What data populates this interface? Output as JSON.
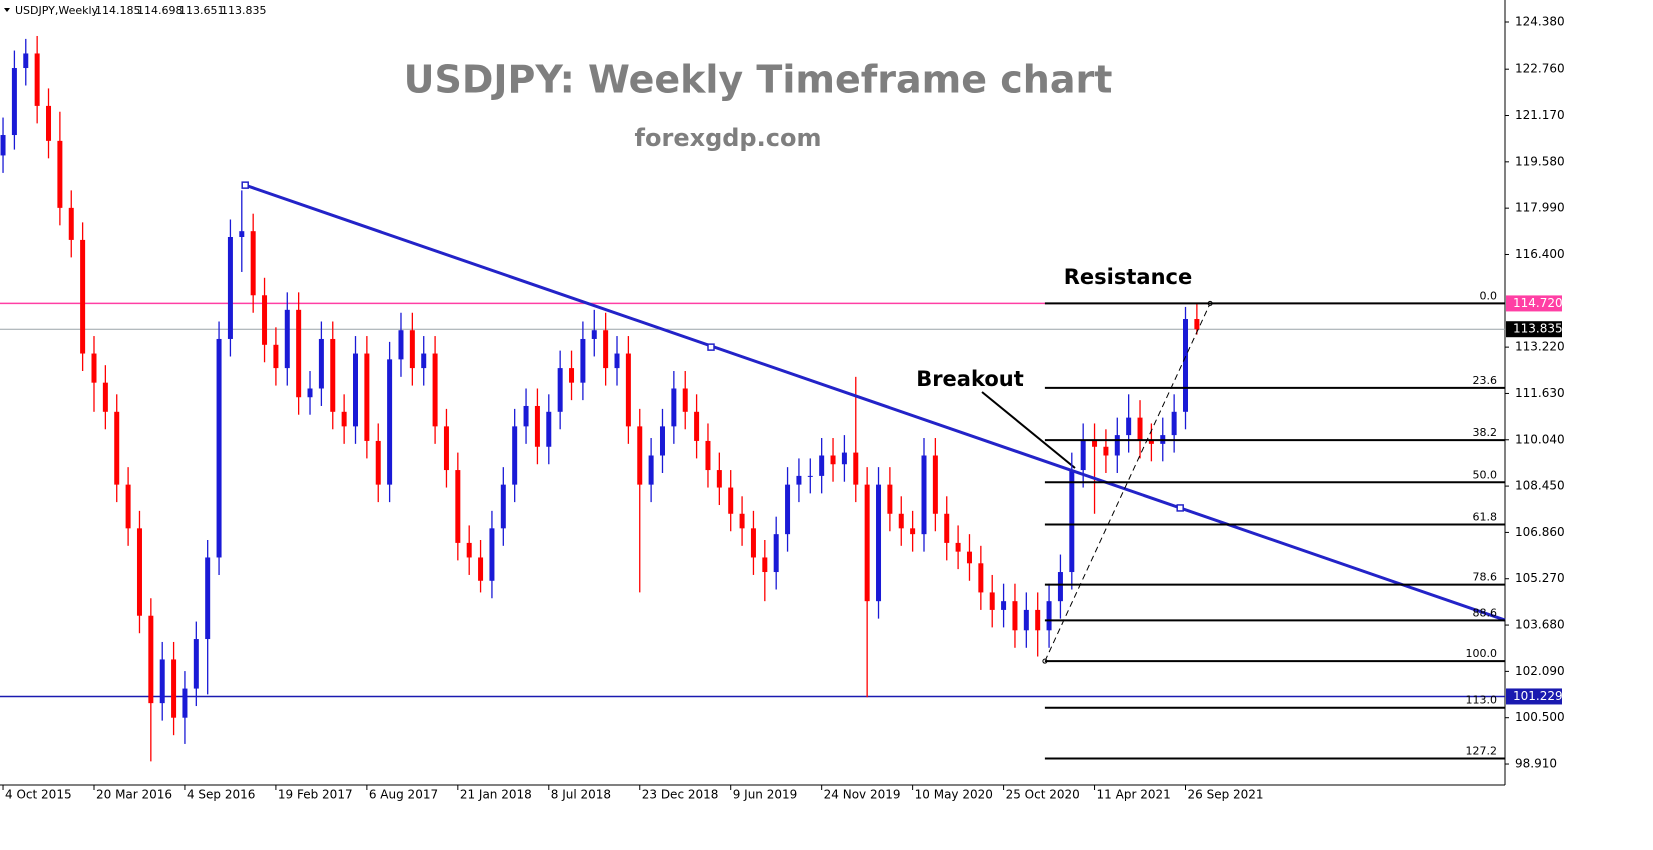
{
  "chart_data": {
    "type": "candlestick",
    "header": {
      "symbol": "USDJPY,Weekly",
      "ohlc": [
        114.185,
        114.698,
        113.651,
        113.835
      ]
    },
    "title": "USDJPY: Weekly Timeframe chart",
    "subtitle": "forexgdp.com",
    "annotations": [
      "Resistance",
      "Breakout"
    ],
    "up_color": "#1a1ad6",
    "down_color": "#ff0000",
    "xlim": [
      -0.8,
      396.3
    ],
    "ylim": [
      98.19,
      125.135
    ],
    "xticks": [
      {
        "value": 0,
        "label": "4 Oct 2015"
      },
      {
        "value": 24,
        "label": "20 Mar 2016"
      },
      {
        "value": 48,
        "label": "4 Sep 2016"
      },
      {
        "value": 72,
        "label": "19 Feb 2017"
      },
      {
        "value": 96,
        "label": "6 Aug 2017"
      },
      {
        "value": 120,
        "label": "21 Jan 2018"
      },
      {
        "value": 144,
        "label": "8 Jul 2018"
      },
      {
        "value": 168,
        "label": "23 Dec 2018"
      },
      {
        "value": 192,
        "label": "9 Jun 2019"
      },
      {
        "value": 216,
        "label": "24 Nov 2019"
      },
      {
        "value": 240,
        "label": "10 May 2020"
      },
      {
        "value": 264,
        "label": "25 Oct 2020"
      },
      {
        "value": 288,
        "label": "11 Apr 2021"
      },
      {
        "value": 312,
        "label": "26 Sep 2021"
      }
    ],
    "yticks": [
      {
        "value": 124.38,
        "label": "124.380"
      },
      {
        "value": 122.76,
        "label": "122.760"
      },
      {
        "value": 121.17,
        "label": "121.170"
      },
      {
        "value": 119.58,
        "label": "119.580"
      },
      {
        "value": 117.99,
        "label": "117.990"
      },
      {
        "value": 116.4,
        "label": "116.400"
      },
      {
        "value": 113.22,
        "label": "113.220"
      },
      {
        "value": 111.63,
        "label": "111.630"
      },
      {
        "value": 110.04,
        "label": "110.040"
      },
      {
        "value": 108.45,
        "label": "108.450"
      },
      {
        "value": 106.86,
        "label": "106.860"
      },
      {
        "value": 105.27,
        "label": "105.270"
      },
      {
        "value": 103.68,
        "label": "103.680"
      },
      {
        "value": 102.09,
        "label": "102.090"
      },
      {
        "value": 100.5,
        "label": "100.500"
      },
      {
        "value": 98.91,
        "label": "98.910"
      }
    ],
    "hlines": [
      {
        "value": 114.72,
        "value_label": "114.720",
        "color": "#ff3fa4"
      },
      {
        "value": 113.835,
        "value_label": "113.835",
        "color": "#9aa3a8"
      },
      {
        "value": 101.229,
        "value_label": "101.229",
        "color": "#1a1ab0"
      }
    ],
    "trendline": {
      "x": [
        63.9,
        396.3
      ],
      "y": [
        118.78,
        103.85
      ],
      "color": "#2323c8",
      "markers": {
        "x": [
          63.9,
          186.8,
          310.6
        ],
        "y": [
          118.78,
          113.22,
          107.7
        ]
      }
    },
    "fibonacci": {
      "x": [
        274.9,
        318.5
      ],
      "high": 114.72,
      "low": 102.44,
      "levels": [
        {
          "value": 0,
          "label": "0.0"
        },
        23.6,
        38.2,
        {
          "value": 50,
          "label": "50.0"
        },
        61.8,
        78.6,
        88.6,
        {
          "value": 100,
          "label": "100.0"
        },
        {
          "value": 113,
          "label": "113.0"
        },
        127.2
      ]
    },
    "candles": {
      "x": [
        0,
        3,
        6,
        9,
        12,
        15,
        18,
        21,
        24,
        27,
        30,
        33,
        36,
        39,
        42,
        45,
        48,
        51,
        54,
        57,
        60,
        63,
        66,
        69,
        72,
        75,
        78,
        81,
        84,
        87,
        90,
        93,
        96,
        99,
        102,
        105,
        108,
        111,
        114,
        117,
        120,
        123,
        126,
        129,
        132,
        135,
        138,
        141,
        144,
        147,
        150,
        153,
        156,
        159,
        162,
        165,
        168,
        171,
        174,
        177,
        180,
        183,
        186,
        189,
        192,
        195,
        198,
        201,
        204,
        207,
        210,
        213,
        216,
        219,
        222,
        225,
        228,
        231,
        234,
        237,
        240,
        243,
        246,
        249,
        252,
        255,
        258,
        261,
        264,
        267,
        270,
        273,
        276,
        279,
        282,
        285,
        288,
        291,
        294,
        297,
        300,
        303,
        306,
        309,
        312,
        315
      ],
      "open": [
        119.8,
        120.5,
        122.8,
        123.3,
        121.5,
        120.3,
        118.0,
        116.9,
        113.0,
        112.0,
        111.0,
        108.5,
        107.0,
        104.0,
        101.0,
        102.5,
        100.5,
        101.5,
        103.2,
        106.0,
        113.5,
        117.0,
        117.2,
        115.0,
        113.3,
        112.5,
        114.5,
        111.5,
        111.8,
        113.5,
        111.0,
        110.5,
        113.0,
        110.0,
        108.5,
        112.8,
        113.8,
        112.5,
        113.0,
        110.5,
        109.0,
        106.5,
        106.0,
        105.2,
        107.0,
        108.5,
        110.5,
        111.2,
        109.8,
        111.0,
        112.5,
        112.0,
        113.5,
        113.8,
        112.5,
        113.0,
        110.5,
        108.5,
        109.5,
        110.5,
        111.8,
        111.0,
        110.0,
        109.0,
        108.4,
        107.5,
        107.0,
        106.0,
        105.5,
        106.8,
        108.5,
        108.8,
        108.8,
        109.5,
        109.2,
        109.6,
        108.5,
        104.5,
        108.5,
        107.5,
        107.0,
        106.8,
        109.5,
        107.5,
        106.5,
        106.2,
        105.8,
        104.8,
        104.2,
        104.5,
        103.5,
        104.2,
        103.5,
        104.5,
        105.5,
        109.0,
        110.0,
        109.8,
        109.5,
        110.2,
        110.8,
        110.0,
        109.9,
        110.2,
        111.0,
        114.185
      ],
      "high": [
        121.1,
        123.4,
        123.8,
        123.9,
        122.1,
        121.3,
        118.6,
        117.5,
        113.6,
        112.6,
        111.6,
        109.1,
        107.6,
        104.6,
        103.1,
        103.1,
        102.1,
        103.8,
        106.6,
        114.1,
        117.6,
        118.6,
        117.8,
        115.6,
        113.9,
        115.1,
        115.1,
        112.4,
        114.1,
        114.1,
        111.6,
        113.6,
        113.6,
        110.6,
        113.4,
        114.4,
        114.4,
        113.6,
        113.6,
        111.1,
        109.6,
        107.1,
        106.6,
        107.6,
        109.1,
        111.1,
        111.8,
        111.8,
        111.6,
        113.1,
        113.1,
        114.1,
        114.5,
        114.4,
        113.6,
        113.6,
        111.1,
        110.1,
        111.1,
        112.4,
        112.4,
        111.6,
        110.6,
        109.6,
        109.0,
        108.1,
        107.6,
        106.6,
        107.4,
        109.1,
        109.4,
        109.4,
        110.1,
        110.1,
        110.2,
        112.2,
        109.1,
        109.1,
        109.1,
        108.1,
        107.6,
        110.1,
        110.1,
        108.1,
        107.1,
        106.8,
        106.4,
        105.4,
        105.1,
        105.1,
        104.8,
        104.8,
        105.1,
        106.1,
        109.6,
        110.6,
        110.6,
        110.4,
        110.8,
        111.6,
        111.4,
        110.6,
        110.8,
        111.6,
        114.6,
        114.698
      ],
      "low": [
        119.2,
        120.0,
        122.2,
        120.9,
        119.7,
        117.4,
        116.3,
        112.4,
        111.0,
        110.4,
        107.9,
        106.4,
        103.4,
        99.0,
        100.4,
        99.9,
        99.6,
        100.9,
        101.3,
        105.4,
        112.9,
        115.8,
        114.4,
        112.7,
        111.9,
        111.9,
        110.9,
        110.9,
        111.2,
        110.4,
        109.9,
        109.9,
        109.4,
        107.9,
        107.9,
        112.2,
        111.9,
        111.9,
        109.9,
        108.4,
        105.9,
        105.4,
        104.8,
        104.6,
        106.4,
        107.9,
        109.9,
        109.2,
        109.2,
        110.4,
        111.4,
        111.4,
        112.9,
        111.9,
        111.9,
        109.9,
        104.8,
        107.9,
        108.9,
        109.9,
        110.4,
        109.4,
        108.4,
        107.8,
        106.9,
        106.4,
        105.4,
        104.5,
        104.9,
        106.2,
        107.9,
        108.2,
        108.2,
        108.6,
        108.6,
        107.9,
        101.2,
        103.9,
        106.9,
        106.4,
        106.2,
        106.2,
        106.9,
        105.9,
        105.6,
        105.2,
        104.2,
        103.6,
        103.6,
        102.9,
        102.9,
        102.6,
        102.9,
        103.9,
        104.9,
        108.4,
        107.5,
        108.9,
        108.9,
        109.6,
        109.4,
        109.3,
        109.3,
        109.6,
        110.4,
        113.651
      ],
      "close": [
        120.5,
        122.8,
        123.3,
        121.5,
        120.3,
        118.0,
        116.9,
        113.0,
        112.0,
        111.0,
        108.5,
        107.0,
        104.0,
        101.0,
        102.5,
        100.5,
        101.5,
        103.2,
        106.0,
        113.5,
        117.0,
        117.2,
        115.0,
        113.3,
        112.5,
        114.5,
        111.5,
        111.8,
        113.5,
        111.0,
        110.5,
        113.0,
        110.0,
        108.5,
        112.8,
        113.8,
        112.5,
        113.0,
        110.5,
        109.0,
        106.5,
        106.0,
        105.2,
        107.0,
        108.5,
        110.5,
        111.2,
        109.8,
        111.0,
        112.5,
        112.0,
        113.5,
        113.8,
        112.5,
        113.0,
        110.5,
        108.5,
        109.5,
        110.5,
        111.8,
        111.0,
        110.0,
        109.0,
        108.4,
        107.5,
        107.0,
        106.0,
        105.5,
        106.8,
        108.5,
        108.8,
        108.8,
        109.5,
        109.2,
        109.6,
        108.5,
        104.5,
        108.5,
        107.5,
        107.0,
        106.8,
        109.5,
        107.5,
        106.5,
        106.2,
        105.8,
        104.8,
        104.2,
        104.5,
        103.5,
        104.2,
        103.5,
        104.5,
        105.5,
        109.0,
        110.0,
        109.8,
        109.5,
        110.2,
        110.8,
        110.0,
        109.9,
        110.2,
        111.0,
        114.185,
        113.835
      ]
    }
  }
}
